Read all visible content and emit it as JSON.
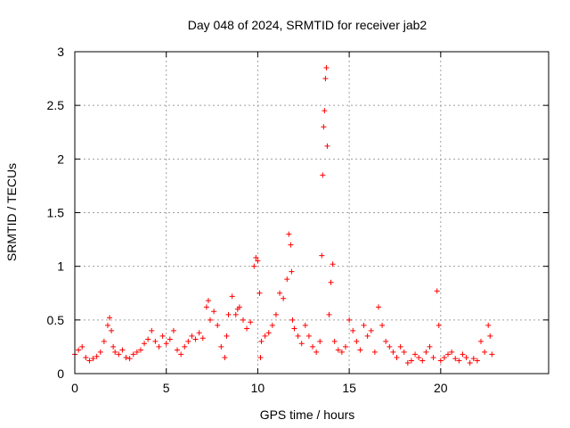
{
  "chart_data": {
    "type": "scatter",
    "title": "Day 048 of 2024, SRMTID for receiver jab2",
    "xlabel": "GPS time / hours",
    "ylabel": "SRMTID / TECUs",
    "xlim": [
      0,
      25.9
    ],
    "ylim": [
      0,
      3
    ],
    "xticks": [
      0,
      5,
      10,
      15,
      20
    ],
    "xtick_labels": [
      "0",
      "5",
      "10",
      "15",
      "20"
    ],
    "yticks": [
      0,
      0.5,
      1,
      1.5,
      2,
      2.5,
      3
    ],
    "ytick_labels": [
      "0",
      "0.5",
      "1",
      "1.5",
      "2",
      "2.5",
      "3"
    ],
    "grid": true,
    "marker": "plus",
    "series": [
      {
        "name": "SRMTID",
        "color": "#ff0000",
        "x": [
          0.0,
          0.2,
          0.4,
          0.6,
          0.8,
          1.0,
          1.2,
          1.4,
          1.6,
          1.8,
          1.9,
          2.0,
          2.1,
          2.2,
          2.4,
          2.6,
          2.8,
          3.0,
          3.2,
          3.4,
          3.6,
          3.8,
          4.0,
          4.2,
          4.4,
          4.6,
          4.8,
          5.0,
          5.2,
          5.4,
          5.6,
          5.8,
          6.0,
          6.2,
          6.4,
          6.6,
          6.8,
          7.0,
          7.2,
          7.3,
          7.4,
          7.6,
          7.8,
          8.0,
          8.2,
          8.3,
          8.4,
          8.6,
          8.8,
          8.9,
          9.0,
          9.2,
          9.4,
          9.6,
          9.8,
          9.9,
          10.0,
          10.1,
          10.15,
          10.2,
          10.4,
          10.6,
          10.8,
          11.0,
          11.2,
          11.4,
          11.6,
          11.7,
          11.8,
          11.85,
          11.9,
          12.0,
          12.2,
          12.4,
          12.6,
          12.8,
          13.0,
          13.2,
          13.4,
          13.5,
          13.55,
          13.6,
          13.65,
          13.7,
          13.75,
          13.8,
          13.9,
          14.0,
          14.1,
          14.2,
          14.4,
          14.6,
          14.8,
          15.0,
          15.2,
          15.4,
          15.6,
          15.8,
          16.0,
          16.2,
          16.4,
          16.6,
          16.8,
          17.0,
          17.2,
          17.4,
          17.6,
          17.8,
          18.0,
          18.2,
          18.4,
          18.6,
          18.8,
          19.0,
          19.2,
          19.4,
          19.6,
          19.8,
          19.9,
          20.0,
          20.2,
          20.4,
          20.6,
          20.8,
          21.0,
          21.2,
          21.4,
          21.6,
          21.8,
          22.0,
          22.2,
          22.4,
          22.6,
          22.7,
          22.8
        ],
        "y": [
          0.18,
          0.22,
          0.25,
          0.15,
          0.12,
          0.14,
          0.16,
          0.2,
          0.3,
          0.45,
          0.52,
          0.4,
          0.25,
          0.2,
          0.18,
          0.22,
          0.15,
          0.14,
          0.18,
          0.2,
          0.22,
          0.28,
          0.32,
          0.4,
          0.3,
          0.25,
          0.35,
          0.28,
          0.32,
          0.4,
          0.22,
          0.18,
          0.25,
          0.3,
          0.35,
          0.32,
          0.38,
          0.33,
          0.62,
          0.68,
          0.5,
          0.58,
          0.45,
          0.25,
          0.15,
          0.35,
          0.55,
          0.72,
          0.55,
          0.6,
          0.62,
          0.5,
          0.42,
          0.48,
          1.0,
          1.08,
          1.05,
          0.75,
          0.15,
          0.3,
          0.35,
          0.38,
          0.45,
          0.55,
          0.75,
          0.7,
          0.88,
          1.3,
          1.2,
          0.95,
          0.5,
          0.42,
          0.35,
          0.28,
          0.45,
          0.35,
          0.25,
          0.2,
          0.3,
          1.1,
          1.85,
          2.3,
          2.45,
          2.75,
          2.85,
          2.12,
          0.55,
          0.85,
          1.02,
          0.3,
          0.22,
          0.2,
          0.25,
          0.5,
          0.4,
          0.3,
          0.22,
          0.45,
          0.35,
          0.4,
          0.2,
          0.62,
          0.45,
          0.3,
          0.25,
          0.2,
          0.15,
          0.25,
          0.2,
          0.1,
          0.12,
          0.18,
          0.15,
          0.12,
          0.2,
          0.25,
          0.15,
          0.77,
          0.45,
          0.12,
          0.15,
          0.18,
          0.2,
          0.14,
          0.12,
          0.18,
          0.15,
          0.1,
          0.14,
          0.12,
          0.3,
          0.2,
          0.45,
          0.35,
          0.18
        ]
      }
    ]
  }
}
